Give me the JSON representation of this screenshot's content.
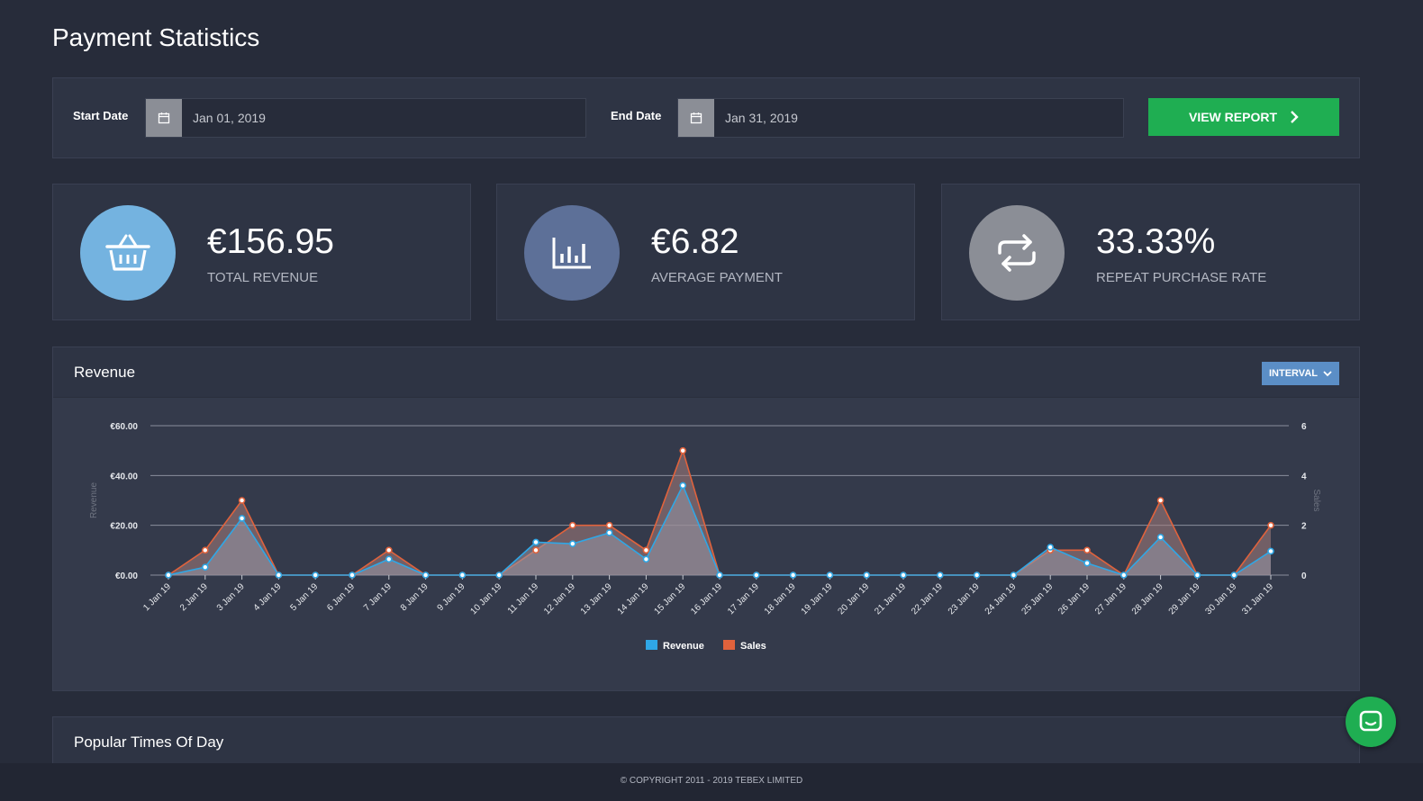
{
  "page": {
    "title": "Payment Statistics"
  },
  "filters": {
    "start_label": "Start Date",
    "start_value": "Jan 01, 2019",
    "end_label": "End Date",
    "end_value": "Jan 31, 2019",
    "button_label": "VIEW REPORT"
  },
  "stats": [
    {
      "value": "€156.95",
      "label": "TOTAL REVENUE",
      "icon": "basket-icon",
      "color": "#74b3e0"
    },
    {
      "value": "€6.82",
      "label": "AVERAGE PAYMENT",
      "icon": "bar-chart-icon",
      "color": "#5d7098"
    },
    {
      "value": "33.33%",
      "label": "REPEAT PURCHASE RATE",
      "icon": "repeat-icon",
      "color": "#8b8e96"
    }
  ],
  "revenue": {
    "title": "Revenue",
    "interval_label": "INTERVAL"
  },
  "popular": {
    "title": "Popular Times Of Day"
  },
  "footer": {
    "text": "© COPYRIGHT 2011 - 2019 TEBEX LIMITED"
  },
  "chart_data": {
    "type": "line",
    "x": [
      "1 Jan 19",
      "2 Jan 19",
      "3 Jan 19",
      "4 Jan 19",
      "5 Jan 19",
      "6 Jan 19",
      "7 Jan 19",
      "8 Jan 19",
      "9 Jan 19",
      "10 Jan 19",
      "11 Jan 19",
      "12 Jan 19",
      "13 Jan 19",
      "14 Jan 19",
      "15 Jan 19",
      "16 Jan 19",
      "17 Jan 19",
      "18 Jan 19",
      "19 Jan 19",
      "20 Jan 19",
      "21 Jan 19",
      "22 Jan 19",
      "23 Jan 19",
      "24 Jan 19",
      "25 Jan 19",
      "26 Jan 19",
      "27 Jan 19",
      "28 Jan 19",
      "29 Jan 19",
      "30 Jan 19",
      "31 Jan 19"
    ],
    "series": [
      {
        "name": "Revenue",
        "axis": "left",
        "color": "#2fa7e6",
        "values": [
          0,
          3.2,
          22.8,
          0,
          0,
          0,
          6.4,
          0,
          0,
          0,
          13.2,
          12.6,
          17.0,
          6.4,
          36.0,
          0,
          0,
          0,
          0,
          0,
          0,
          0,
          0,
          0,
          11.2,
          4.8,
          0,
          15.2,
          0,
          0,
          9.6
        ]
      },
      {
        "name": "Sales",
        "axis": "right",
        "color": "#e0623c",
        "values": [
          0,
          1,
          3,
          0,
          0,
          0,
          1,
          0,
          0,
          0,
          1,
          2,
          2,
          1,
          5,
          0,
          0,
          0,
          0,
          0,
          0,
          0,
          0,
          0,
          1,
          1,
          0,
          3,
          0,
          0,
          2
        ]
      }
    ],
    "y_left": {
      "label": "Revenue",
      "ticks": [
        "€0.00",
        "€20.00",
        "€40.00",
        "€60.00"
      ],
      "range": [
        0,
        60
      ]
    },
    "y_right": {
      "label": "Sales",
      "ticks": [
        "0",
        "2",
        "4",
        "6"
      ],
      "range": [
        0,
        6
      ]
    },
    "legend": "bottom-center",
    "grid": true
  }
}
